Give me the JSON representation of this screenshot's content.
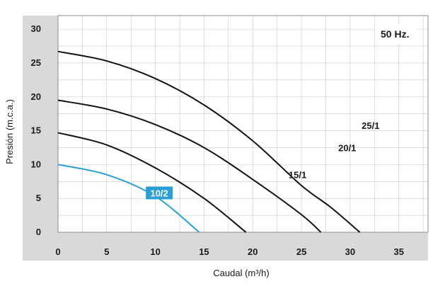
{
  "chart_data": {
    "type": "line",
    "xlabel": "Caudal (m³/h)",
    "ylabel": "Presión (m.c.a.)",
    "xlim": [
      0,
      38
    ],
    "ylim": [
      0,
      32
    ],
    "x_ticks": [
      0,
      5,
      10,
      15,
      20,
      25,
      30,
      35
    ],
    "y_ticks": [
      0,
      5,
      10,
      15,
      20,
      25,
      30
    ],
    "grid": true,
    "annotation": "50 Hz.",
    "colors": {
      "panel": "#d9d9d9",
      "grid": "#c8c8c8",
      "dark_curve": "#111111",
      "blue_curve": "#2a9fd6",
      "label_box": "#2a9fd6"
    },
    "series": [
      {
        "name": "25/1",
        "color": "#111111",
        "x": [
          0,
          5,
          10,
          15,
          20,
          25,
          28,
          31
        ],
        "y": [
          26.7,
          25.3,
          22.7,
          18.8,
          13.5,
          6.9,
          3.7,
          0
        ]
      },
      {
        "name": "20/1",
        "color": "#111111",
        "x": [
          0,
          5,
          10,
          15,
          20,
          25,
          27
        ],
        "y": [
          19.5,
          18.2,
          15.9,
          12.5,
          7.8,
          2.6,
          0
        ]
      },
      {
        "name": "15/1",
        "color": "#111111",
        "x": [
          0,
          5,
          10,
          15,
          19.3
        ],
        "y": [
          14.7,
          12.9,
          9.5,
          5.0,
          0
        ]
      },
      {
        "name": "10/2",
        "color": "#2a9fd6",
        "x": [
          0,
          5,
          10,
          14.5
        ],
        "y": [
          10.0,
          8.5,
          5.3,
          0
        ],
        "boxed": true
      }
    ],
    "label_positions": {
      "25/1": [
        32.1,
        15.7
      ],
      "20/1": [
        29.7,
        12.4
      ],
      "15/1": [
        24.6,
        8.4
      ],
      "10/2": [
        10.4,
        5.6
      ]
    }
  }
}
